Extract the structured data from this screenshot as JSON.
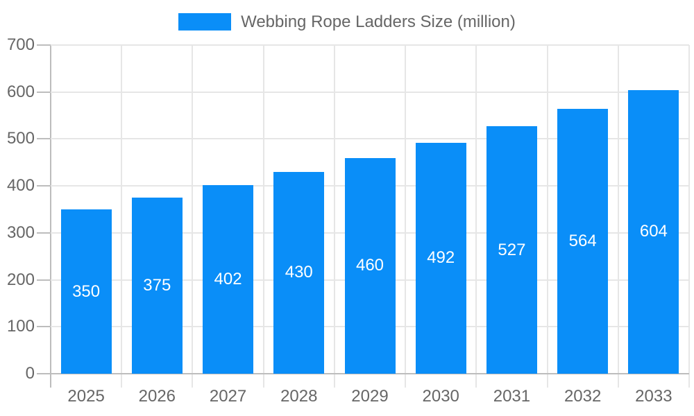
{
  "chart_data": {
    "type": "bar",
    "title": "Webbing Rope Ladders Size (million)",
    "series_name": "Webbing Rope Ladders Size (million)",
    "categories": [
      "2025",
      "2026",
      "2027",
      "2028",
      "2029",
      "2030",
      "2031",
      "2032",
      "2033"
    ],
    "values": [
      350,
      375,
      402,
      430,
      460,
      492,
      527,
      564,
      604
    ],
    "xlabel": "",
    "ylabel": "",
    "ylim": [
      0,
      700
    ],
    "yticks": [
      0,
      100,
      200,
      300,
      400,
      500,
      600,
      700
    ],
    "grid": true,
    "legend_position": "top-center",
    "value_label_position": "inside-center"
  },
  "colors": {
    "bar": "#0A8EF8",
    "value_label": "#FFFFFF",
    "axis_text": "#666666",
    "legend_text": "#666666",
    "gridline": "#E6E6E6",
    "axis_line": "#BDBDBD",
    "background": "#FFFFFF"
  }
}
